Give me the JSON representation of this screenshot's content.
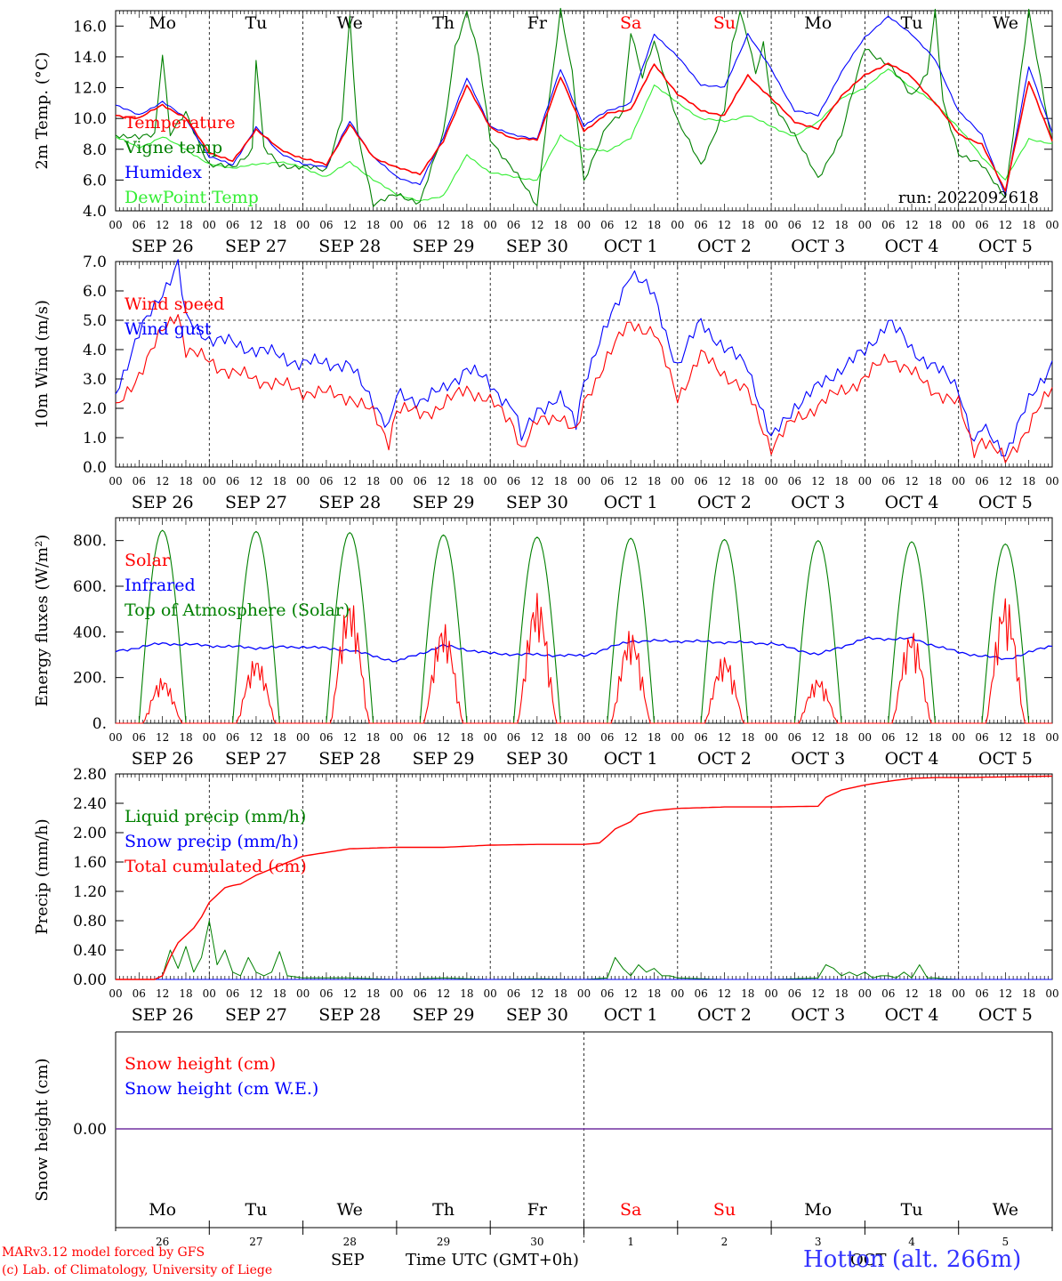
{
  "footer": {
    "model_credit": "MARv3.12 model forced by GFS",
    "lab_credit": "(c) Lab. of Climatology, University of Liege",
    "time_axis_label": "Time UTC (GMT+0h)",
    "month_sep": "SEP",
    "month_oct": "OCT",
    "station": "Hotton (alt. 266m)"
  },
  "run_label": "run: 2022092618",
  "day_names": [
    "Mo",
    "Tu",
    "We",
    "Th",
    "Fr",
    "Sa",
    "Su",
    "Mo",
    "Tu",
    "We"
  ],
  "weekend_color": "#ff0000",
  "day_numbers": [
    "26",
    "27",
    "28",
    "29",
    "30",
    "1",
    "2",
    "3",
    "4",
    "5"
  ],
  "date_labels": [
    "SEP 26",
    "SEP 27",
    "SEP 28",
    "SEP 29",
    "SEP 30",
    "OCT  1",
    "OCT  2",
    "OCT  3",
    "OCT  4",
    "OCT  5"
  ],
  "hour_ticks": [
    "00",
    "06",
    "12",
    "18"
  ],
  "colors": {
    "red": "#ff0000",
    "blue": "#0000ff",
    "green": "#008000",
    "light_green": "#33ee33",
    "purple": "#7030a0"
  },
  "chart_data": [
    {
      "id": "temperature",
      "type": "line",
      "ylabel": "2m Temp. (°C)",
      "ylim": [
        4.0,
        17.0
      ],
      "yticks": [
        "4.0",
        "6.0",
        "8.0",
        "10.0",
        "12.0",
        "14.0",
        "16.0"
      ],
      "x": "hours since SEP 26 00 UTC (0-240)",
      "series": [
        {
          "name": "Temperature",
          "color": "#ff0000",
          "x": [
            0,
            6,
            12,
            18,
            24,
            30,
            36,
            42,
            48,
            54,
            60,
            66,
            72,
            78,
            84,
            90,
            96,
            102,
            108,
            114,
            120,
            126,
            132,
            138,
            144,
            150,
            156,
            162,
            168,
            174,
            180,
            186,
            192,
            198,
            204,
            210,
            216,
            222,
            228,
            234,
            240
          ],
          "values": [
            10.2,
            10.0,
            10.9,
            10.0,
            7.8,
            7.2,
            9.3,
            8.0,
            7.4,
            7.0,
            9.6,
            7.5,
            6.8,
            6.4,
            8.5,
            12.2,
            9.4,
            8.7,
            8.6,
            12.7,
            9.2,
            10.3,
            10.6,
            13.5,
            11.6,
            10.5,
            10.2,
            12.8,
            11.3,
            9.8,
            9.3,
            11.5,
            12.8,
            13.6,
            12.7,
            11.0,
            9.0,
            8.3,
            5.3,
            12.4,
            8.6
          ]
        },
        {
          "name": "Vigne temp",
          "color": "#008000",
          "x": [
            0,
            6,
            10,
            12,
            14,
            18,
            24,
            30,
            35,
            36,
            38,
            42,
            48,
            54,
            58,
            60,
            62,
            66,
            72,
            78,
            84,
            87,
            90,
            93,
            96,
            102,
            108,
            110,
            114,
            117,
            120,
            126,
            130,
            132,
            135,
            138,
            141,
            144,
            150,
            156,
            158,
            160,
            162,
            164,
            166,
            168,
            174,
            180,
            186,
            192,
            198,
            204,
            208,
            210,
            212,
            216,
            222,
            228,
            234,
            240
          ],
          "values": [
            9.0,
            8.7,
            9.0,
            14.3,
            9.0,
            10.3,
            7.0,
            6.8,
            8.0,
            13.9,
            8.0,
            7.0,
            6.8,
            6.7,
            10.0,
            16.5,
            9.0,
            4.5,
            5.0,
            4.6,
            9.0,
            14.7,
            16.9,
            14.0,
            8.7,
            6.6,
            4.4,
            9.0,
            16.9,
            13.0,
            6.0,
            9.5,
            10.5,
            15.7,
            12.6,
            15.0,
            12.5,
            9.8,
            7.0,
            10.5,
            14.7,
            16.9,
            15.3,
            13.0,
            14.8,
            11.0,
            9.0,
            6.0,
            9.0,
            14.6,
            13.5,
            11.5,
            13.0,
            16.9,
            11.0,
            7.8,
            6.9,
            5.0,
            16.9,
            8.4
          ]
        },
        {
          "name": "Humidex",
          "color": "#0000ff",
          "x": [
            0,
            6,
            12,
            18,
            24,
            30,
            36,
            42,
            48,
            54,
            60,
            66,
            72,
            78,
            84,
            90,
            96,
            102,
            108,
            114,
            120,
            126,
            132,
            138,
            144,
            150,
            156,
            162,
            168,
            174,
            180,
            186,
            192,
            198,
            204,
            210,
            216,
            222,
            228,
            234,
            240
          ],
          "values": [
            10.9,
            10.2,
            11.1,
            10.0,
            7.5,
            7.0,
            9.4,
            7.8,
            7.0,
            6.9,
            9.8,
            7.5,
            6.2,
            5.7,
            8.8,
            12.6,
            9.5,
            8.9,
            8.7,
            13.2,
            9.5,
            10.5,
            11.0,
            15.5,
            14.0,
            12.2,
            12.0,
            15.5,
            13.2,
            10.5,
            10.2,
            13.0,
            15.3,
            16.6,
            15.5,
            13.8,
            10.5,
            8.9,
            5.0,
            13.4,
            9.1
          ]
        },
        {
          "name": "DewPoint Temp",
          "color": "#33ee33",
          "x": [
            0,
            6,
            12,
            18,
            24,
            30,
            36,
            42,
            48,
            54,
            60,
            66,
            72,
            78,
            84,
            90,
            96,
            102,
            108,
            114,
            120,
            126,
            132,
            138,
            144,
            150,
            156,
            162,
            168,
            174,
            180,
            186,
            192,
            198,
            204,
            210,
            216,
            222,
            228,
            234,
            240
          ],
          "values": [
            8.8,
            8.1,
            8.8,
            8.0,
            7.0,
            6.8,
            7.0,
            7.2,
            6.8,
            6.2,
            7.2,
            6.0,
            5.1,
            4.6,
            5.0,
            7.6,
            6.5,
            6.2,
            6.0,
            8.9,
            8.0,
            7.9,
            8.7,
            12.2,
            11.0,
            10.0,
            9.8,
            10.2,
            9.5,
            8.8,
            9.8,
            11.3,
            12.0,
            13.2,
            12.0,
            11.0,
            9.4,
            7.5,
            6.0,
            8.7,
            8.3
          ]
        }
      ],
      "legend_placement": "top-left"
    },
    {
      "id": "wind",
      "type": "line",
      "ylabel": "10m Wind (m/s)",
      "ylim": [
        0.0,
        7.0
      ],
      "yticks": [
        "0.0",
        "1.0",
        "2.0",
        "3.0",
        "4.0",
        "5.0",
        "6.0",
        "7.0"
      ],
      "series": [
        {
          "name": "Wind speed",
          "color": "#ff0000",
          "x": [
            0,
            6,
            12,
            16,
            18,
            24,
            30,
            36,
            42,
            48,
            54,
            60,
            66,
            70,
            72,
            78,
            84,
            90,
            96,
            102,
            104,
            108,
            114,
            118,
            120,
            126,
            132,
            138,
            144,
            150,
            156,
            162,
            168,
            174,
            180,
            186,
            192,
            198,
            204,
            210,
            216,
            220,
            222,
            228,
            234,
            240
          ],
          "values": [
            1.9,
            3.2,
            4.6,
            5.3,
            4.0,
            3.6,
            3.2,
            3.0,
            2.8,
            2.6,
            2.5,
            2.4,
            1.8,
            0.9,
            2.0,
            1.8,
            2.1,
            2.7,
            2.2,
            1.5,
            0.6,
            1.5,
            1.8,
            1.1,
            2.1,
            3.8,
            4.9,
            4.6,
            2.4,
            3.8,
            3.2,
            2.5,
            0.7,
            1.6,
            2.1,
            2.6,
            3.0,
            3.8,
            3.2,
            2.6,
            2.1,
            0.6,
            1.0,
            0.2,
            1.4,
            2.7
          ]
        },
        {
          "name": "Wind gust",
          "color": "#0000ff",
          "x": [
            0,
            6,
            12,
            16,
            18,
            24,
            30,
            36,
            42,
            48,
            54,
            60,
            66,
            70,
            72,
            78,
            84,
            90,
            96,
            102,
            104,
            108,
            114,
            118,
            120,
            126,
            132,
            138,
            144,
            150,
            156,
            162,
            168,
            174,
            180,
            186,
            192,
            198,
            204,
            210,
            216,
            220,
            222,
            228,
            234,
            240
          ],
          "values": [
            2.6,
            4.5,
            6.0,
            6.9,
            5.0,
            4.4,
            4.2,
            4.0,
            3.8,
            3.5,
            3.6,
            3.4,
            2.3,
            1.3,
            2.4,
            2.3,
            2.6,
            3.4,
            2.8,
            2.0,
            0.9,
            2.0,
            2.3,
            1.5,
            3.0,
            4.8,
            6.7,
            5.8,
            3.4,
            5.0,
            4.0,
            3.5,
            0.9,
            2.1,
            2.7,
            3.4,
            3.9,
            5.0,
            4.0,
            3.4,
            2.7,
            0.8,
            1.3,
            0.5,
            2.2,
            3.6
          ]
        }
      ],
      "legend_placement": "top-left"
    },
    {
      "id": "energy",
      "type": "line",
      "ylabel": "Energy fluxes (W/m²)",
      "ylim": [
        0,
        900
      ],
      "yticks": [
        "0.",
        "200.",
        "400.",
        "600.",
        "800."
      ],
      "series": [
        {
          "name": "Solar",
          "color": "#ff0000",
          "daily_peak": [
            200,
            290,
            550,
            440,
            570,
            410,
            300,
            200,
            410,
            560
          ]
        },
        {
          "name": "Infrared",
          "color": "#0000ff",
          "x": [
            0,
            12,
            24,
            36,
            48,
            60,
            72,
            84,
            96,
            108,
            120,
            132,
            144,
            156,
            168,
            180,
            192,
            204,
            216,
            228,
            240
          ],
          "values": [
            315,
            350,
            340,
            330,
            335,
            320,
            270,
            340,
            305,
            300,
            295,
            360,
            360,
            355,
            350,
            300,
            370,
            370,
            310,
            280,
            340
          ]
        },
        {
          "name": "Top of Atmosphere (Solar)",
          "color": "#008000",
          "daily_peak": [
            845,
            840,
            835,
            825,
            815,
            810,
            805,
            800,
            795,
            785
          ]
        }
      ],
      "legend_placement": "top-left"
    },
    {
      "id": "precip",
      "type": "line",
      "ylabel": "Precip (mm/h)",
      "ylim": [
        0.0,
        2.8
      ],
      "yticks": [
        "0.00",
        "0.40",
        "0.80",
        "1.20",
        "1.60",
        "2.00",
        "2.40",
        "2.80"
      ],
      "series": [
        {
          "name": "Liquid precip (mm/h)",
          "color": "#008000",
          "x": [
            0,
            10,
            12,
            14,
            16,
            18,
            20,
            22,
            24,
            26,
            28,
            30,
            32,
            34,
            36,
            38,
            40,
            42,
            44,
            48,
            60,
            72,
            84,
            96,
            108,
            120,
            126,
            128,
            130,
            132,
            134,
            136,
            138,
            140,
            142,
            144,
            156,
            168,
            180,
            182,
            184,
            186,
            188,
            190,
            192,
            194,
            196,
            198,
            200,
            202,
            204,
            206,
            208,
            210,
            212,
            216,
            228,
            240
          ],
          "values": [
            0,
            0,
            0.05,
            0.4,
            0.15,
            0.45,
            0.1,
            0.3,
            0.8,
            0.2,
            0.4,
            0.1,
            0.05,
            0.3,
            0.1,
            0.05,
            0.1,
            0.38,
            0.05,
            0.02,
            0.02,
            0,
            0.02,
            0,
            0.01,
            0,
            0.02,
            0.3,
            0.15,
            0.05,
            0.2,
            0.1,
            0.15,
            0.05,
            0.05,
            0.02,
            0,
            0,
            0.02,
            0.2,
            0.15,
            0.05,
            0.1,
            0.05,
            0.1,
            0.02,
            0.05,
            0.05,
            0.02,
            0.1,
            0.02,
            0.2,
            0.02,
            0.02,
            0.01,
            0,
            0,
            0
          ]
        },
        {
          "name": "Snow precip (mm/h)",
          "color": "#0000ff",
          "x": [
            0,
            240
          ],
          "values": [
            0,
            0
          ]
        },
        {
          "name": "Total cumulated (cm)",
          "color": "#ff0000",
          "x": [
            0,
            10,
            12,
            14,
            16,
            18,
            20,
            22,
            24,
            26,
            28,
            30,
            32,
            36,
            42,
            48,
            60,
            72,
            84,
            96,
            108,
            120,
            124,
            126,
            128,
            130,
            132,
            134,
            138,
            144,
            156,
            168,
            180,
            182,
            186,
            192,
            198,
            204,
            210,
            216,
            228,
            240
          ],
          "values": [
            0,
            0,
            0.05,
            0.3,
            0.5,
            0.6,
            0.7,
            0.85,
            1.05,
            1.15,
            1.25,
            1.28,
            1.3,
            1.42,
            1.55,
            1.68,
            1.78,
            1.8,
            1.8,
            1.83,
            1.84,
            1.84,
            1.86,
            1.95,
            2.05,
            2.1,
            2.15,
            2.25,
            2.3,
            2.33,
            2.35,
            2.35,
            2.36,
            2.48,
            2.58,
            2.65,
            2.7,
            2.74,
            2.75,
            2.75,
            2.76,
            2.77
          ]
        }
      ],
      "legend_placement": "top-left"
    },
    {
      "id": "snow",
      "type": "line",
      "ylabel": "Snow height (cm)",
      "yticks": [
        "0.00"
      ],
      "series": [
        {
          "name": "Snow height (cm)",
          "color": "#ff0000",
          "x": [
            0,
            240
          ],
          "values": [
            0,
            0
          ]
        },
        {
          "name": "Snow height (cm W.E.)",
          "color": "#0000ff",
          "x": [
            0,
            240
          ],
          "values": [
            0,
            0
          ]
        }
      ],
      "legend_placement": "top-left"
    }
  ]
}
